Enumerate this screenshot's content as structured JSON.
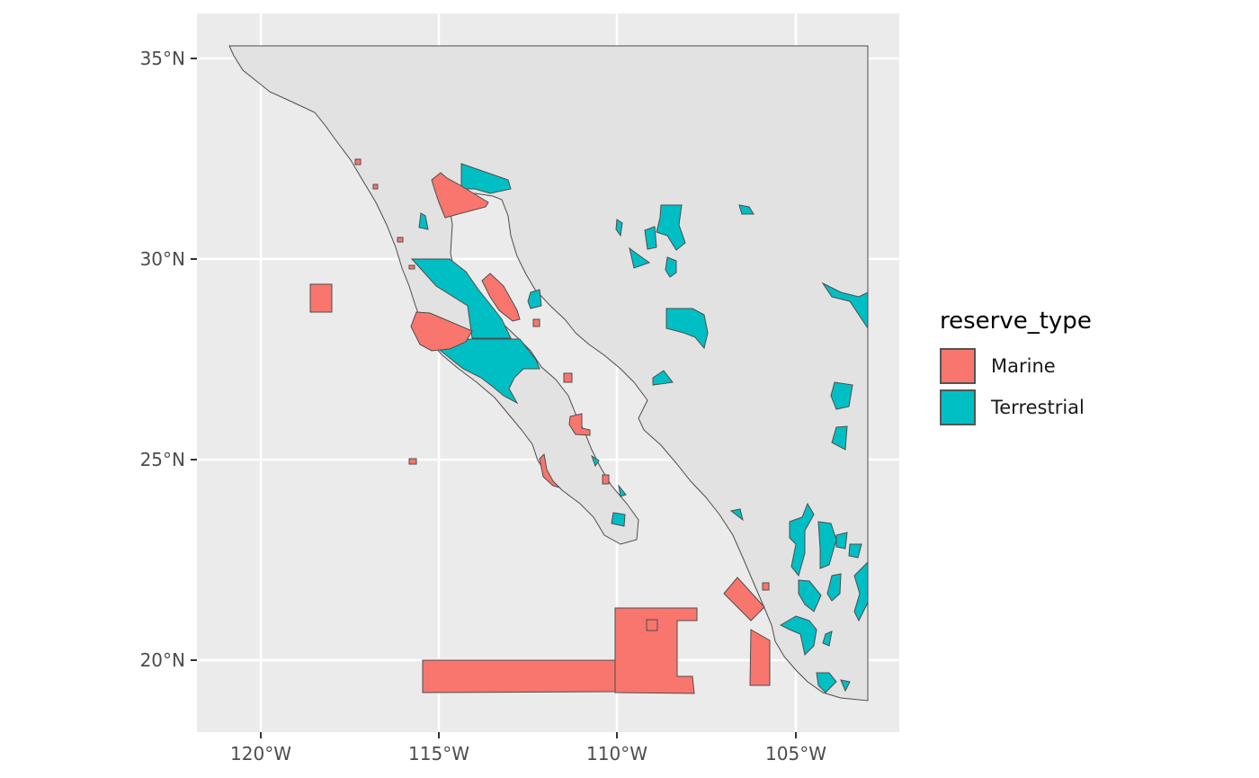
{
  "axes": {
    "x_ticks": [
      "120°W",
      "115°W",
      "110°W",
      "105°W"
    ],
    "y_ticks": [
      "35°N",
      "30°N",
      "25°N",
      "20°N"
    ]
  },
  "legend": {
    "title": "reserve_type",
    "items": [
      {
        "label": "Marine",
        "color": "#F8766D"
      },
      {
        "label": "Terrestrial",
        "color": "#00BFC4"
      }
    ]
  },
  "colors": {
    "panel": "#EBEBEB",
    "land": "#E2E2E2",
    "grid": "#FFFFFF",
    "outline": "#4D4D4D",
    "marine": "#F8766D",
    "terrestrial": "#00BFC4"
  },
  "chart_data": {
    "type": "map",
    "legend_position": "right",
    "grid": true,
    "fill_variable": "reserve_type",
    "categories": [
      "Marine",
      "Terrestrial"
    ],
    "xlim": [
      "122°W",
      "102.5°W"
    ],
    "ylim": [
      "18.3°N",
      "36.1°N"
    ]
  }
}
